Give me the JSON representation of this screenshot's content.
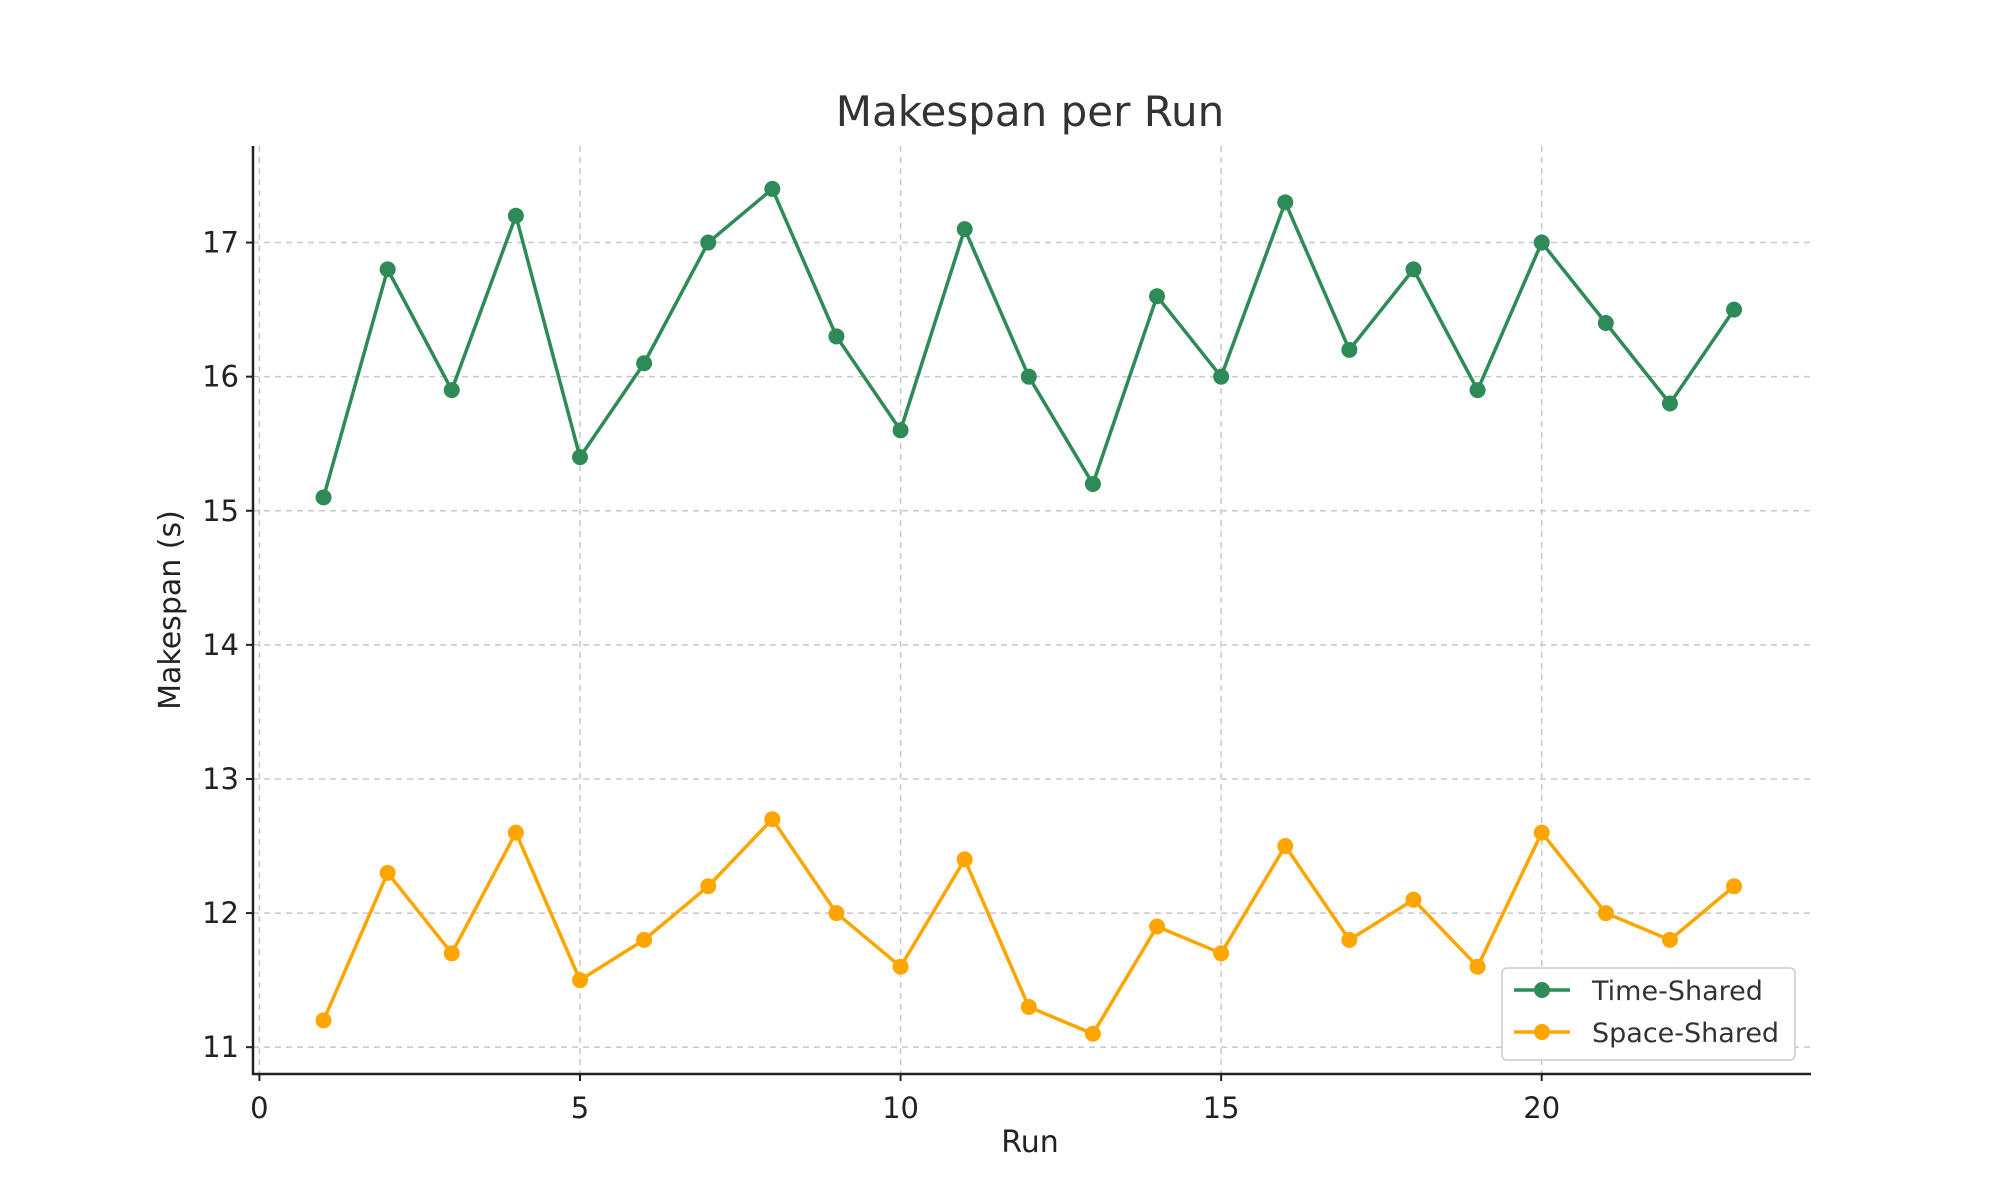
{
  "chart_data": {
    "type": "line",
    "title": "Makespan per Run",
    "xlabel": "Run",
    "ylabel": "Makespan (s)",
    "xlim": [
      -0.1,
      24.2
    ],
    "ylim": [
      10.8,
      17.72
    ],
    "xticks": [
      0,
      5,
      10,
      15,
      20
    ],
    "yticks": [
      11,
      12,
      13,
      14,
      15,
      16,
      17
    ],
    "grid": true,
    "legend_position": "lower-right",
    "x": [
      1,
      2,
      3,
      4,
      5,
      6,
      7,
      8,
      9,
      10,
      11,
      12,
      13,
      14,
      15,
      16,
      17,
      18,
      19,
      20,
      21,
      22,
      23
    ],
    "series": [
      {
        "name": "Time-Shared",
        "color": "#2e8b57",
        "values": [
          15.1,
          16.8,
          15.9,
          17.2,
          15.4,
          16.1,
          17.0,
          17.4,
          16.3,
          15.6,
          17.1,
          16.0,
          15.2,
          16.6,
          16.0,
          17.3,
          16.2,
          16.8,
          15.9,
          17.0,
          16.4,
          15.8,
          16.5
        ]
      },
      {
        "name": "Space-Shared",
        "color": "#ffa500",
        "values": [
          11.2,
          12.3,
          11.7,
          12.6,
          11.5,
          11.8,
          12.2,
          12.7,
          12.0,
          11.6,
          12.4,
          11.3,
          11.1,
          11.9,
          11.7,
          12.5,
          11.8,
          12.1,
          11.6,
          12.6,
          12.0,
          11.8,
          12.2
        ]
      }
    ]
  }
}
